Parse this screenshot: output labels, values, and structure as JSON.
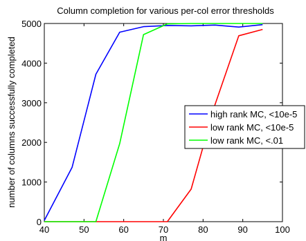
{
  "chart_data": {
    "type": "line",
    "title": "Column completion for various per-col error thresholds",
    "xlabel": "m",
    "ylabel": "number of columns successfully completed",
    "xlim": [
      40,
      100
    ],
    "ylim": [
      0,
      5000
    ],
    "xticks": [
      40,
      50,
      60,
      70,
      80,
      90,
      100
    ],
    "yticks": [
      0,
      1000,
      2000,
      3000,
      4000,
      5000
    ],
    "grid": false,
    "legend_position": "right",
    "series": [
      {
        "name": "high rank MC, <10e-5",
        "color": "#0000ff",
        "x": [
          40,
          47,
          53,
          59,
          65,
          71,
          77,
          83,
          89,
          95
        ],
        "y": [
          30,
          1370,
          3720,
          4780,
          4920,
          4950,
          4940,
          4960,
          4910,
          4970
        ]
      },
      {
        "name": "low rank MC, <10e-5",
        "color": "#ff0000",
        "x": [
          40,
          47,
          53,
          59,
          65,
          71,
          77,
          83,
          89,
          95
        ],
        "y": [
          0,
          0,
          0,
          0,
          0,
          0,
          820,
          2950,
          4690,
          4850
        ]
      },
      {
        "name": "low rank MC, <.01",
        "color": "#00ff00",
        "x": [
          40,
          47,
          53,
          59,
          65,
          71,
          77,
          83,
          89,
          95
        ],
        "y": [
          0,
          0,
          0,
          1970,
          4720,
          4990,
          5000,
          5000,
          5000,
          5000
        ]
      }
    ]
  }
}
